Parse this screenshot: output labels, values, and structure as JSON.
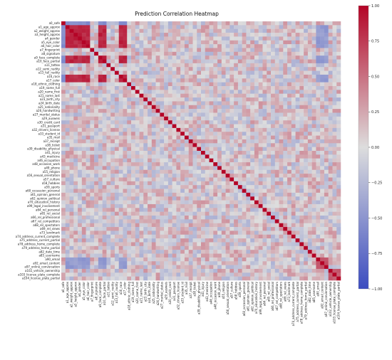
{
  "chart_data": {
    "type": "heatmap",
    "title": "Prediction Correlation Heatmap",
    "labels": [
      "a0_safe",
      "a1_age_approx",
      "a2_weight_approx",
      "a3_height_approx",
      "a4_gender",
      "a5_eye_color",
      "a6_hair_color",
      "a7_fingerprint",
      "a8_signature",
      "a9_face_complete",
      "a10_face_partial",
      "a11_tattoo",
      "a12_semi_nudity",
      "a13_full_nudity",
      "a16_race",
      "a17_color",
      "a18_ethnic_clothing",
      "a19_name_full",
      "a20_name_first",
      "a21_name_last",
      "a23_birth_city",
      "a24_birth_date",
      "a25_nationality",
      "a26_handwriting",
      "a27_marital_status",
      "a29_ausweis",
      "a30_credit_card",
      "a31_passport",
      "a32_drivers_license",
      "a33_student_id",
      "a35_mail",
      "a37_receipt",
      "a38_ticket",
      "a39_disability_physical",
      "a41_injury",
      "a43_medicine",
      "a46_occupation",
      "a48_occasion_work",
      "a49_phone",
      "a55_religion",
      "a56_sexual_orientation",
      "a57_culture",
      "a58_hobbies",
      "a59_sports",
      "a60_occassion_personal",
      "a61_opinion_general",
      "a62_opinion_political",
      "a70_education_history",
      "a99_legal_involvement",
      "a64_rel_personal",
      "a65_rel_social",
      "a66_rel_professional",
      "a67_rel_competitors",
      "a68_rel_spectators",
      "a69_rel_views",
      "a73_landmark",
      "a74_address_current_complete",
      "a75_address_current_partial",
      "a78_address_home_complete",
      "a79_address_home_partial",
      "a82_date_time",
      "a85_username",
      "a90_email",
      "a92_email_content",
      "a97_online_conversation",
      "a102_vehicle_ownership",
      "a103_license_plate_complete",
      "a104_license_plate_partial"
    ],
    "x_tick_labels": [
      "a0_safe",
      "a1_age_approx",
      "a2_weight_approx",
      "a3_height_approx",
      "a4_gender",
      "a5_eye_color",
      "a6_hair_color",
      "a7_fingerprint",
      "a8_signature",
      "a9_face_complete",
      "a10_face_partial",
      "a11_tattoo",
      "a12_semi_nudity",
      "a13_full_nudity",
      "a16_race",
      "a17_color",
      "a18_ethnic_clothing",
      "a19_name_full",
      "a20_name_first",
      "a21_name_last",
      "a23_birth_city",
      "a24_birth_date",
      "a25_nationality",
      "a26_handwriting",
      "a27_marital_status",
      "a29_ausweis",
      "a30_credit_card",
      "a31_passport",
      "a32_drivers_license",
      "a33_student_id",
      "a35_mail",
      "a37_receipt",
      "a38_ticket",
      "a39_disability_physical",
      "a41_injury",
      "a43_medicine",
      "a46_occupation",
      "a48_occasion_work",
      "a49_phone",
      "a55_religion",
      "a56_sexual_orientation",
      "a57_culture",
      "a58_hobbies",
      "a59_sports",
      "a60_occassion_personal",
      "a61_opinion_general",
      "a62_opinion_political",
      "a70_education_history",
      "a99_legal_involvement",
      "a64_rel_personal",
      "a65_rel_social",
      "a66_rel_professional",
      "a67_rel_competitors",
      "a68_rel_spectators",
      "a69_rel_views",
      "a73_landmark",
      "a74_address_current_complete",
      "a75_address_current_partial",
      "a78_address_home_complete",
      "a79_address_home_partial",
      "a82_date_time",
      "a85_username",
      "a90_email",
      "a92_email_content",
      "a97_online_conversation",
      "a102_vehicle_ownership",
      "a103_license_plate_complete",
      "a104_license_plate_partial"
    ],
    "value_range": [
      -1.0,
      1.0
    ],
    "colormap": "coolwarm",
    "color_low": "#3b4cc0",
    "color_mid": "#dddddd",
    "color_high": "#b40426",
    "colorbar_ticks": [
      1.0,
      0.75,
      0.5,
      0.25,
      0.0,
      -0.25,
      -0.5,
      -0.75,
      -1.0
    ],
    "colorbar_tick_labels": [
      "1.00",
      "0.75",
      "0.50",
      "0.25",
      "0.00",
      "−0.25",
      "−0.50",
      "−0.75",
      "−1.00"
    ],
    "strong_positive_groups": [
      {
        "members": [
          "a1_age_approx",
          "a2_weight_approx",
          "a3_height_approx",
          "a4_gender",
          "a5_eye_color",
          "a6_hair_color",
          "a9_face_complete",
          "a10_face_partial",
          "a16_race",
          "a17_color"
        ],
        "value": 0.85
      },
      {
        "members": [
          "a90_email",
          "a92_email_content",
          "a97_online_conversation"
        ],
        "value": 0.6
      },
      {
        "members": [
          "a102_vehicle_ownership",
          "a103_license_plate_complete",
          "a104_license_plate_partial"
        ],
        "value": 0.55
      }
    ],
    "negative_relations": [
      {
        "row_members": [
          "a0_safe"
        ],
        "col_members": [
          "a1_age_approx",
          "a2_weight_approx",
          "a3_height_approx",
          "a4_gender",
          "a5_eye_color",
          "a6_hair_color",
          "a9_face_complete",
          "a10_face_partial",
          "a16_race",
          "a17_color"
        ],
        "value": -0.55
      },
      {
        "row_members": [
          "a1_age_approx",
          "a2_weight_approx",
          "a3_height_approx",
          "a4_gender",
          "a5_eye_color",
          "a6_hair_color",
          "a9_face_complete",
          "a10_face_partial",
          "a16_race",
          "a17_color"
        ],
        "col_members": [
          "a90_email",
          "a92_email_content",
          "a97_online_conversation"
        ],
        "value": -0.45
      }
    ],
    "diagonal": 1.0,
    "background_correlation_range": [
      -0.3,
      0.35
    ],
    "grid": false,
    "legend": "colorbar-right"
  },
  "colors": {
    "background": "#ffffff",
    "text": "#222222"
  }
}
